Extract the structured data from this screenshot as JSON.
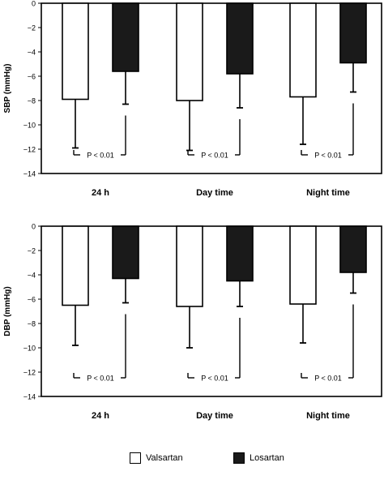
{
  "chart_data": [
    {
      "type": "bar",
      "ylabel": "SBP (mmHg)",
      "categories": [
        "24 h",
        "Day time",
        "Night time"
      ],
      "ylim": [
        -14,
        0
      ],
      "yticks": [
        "0",
        "−2",
        "−4",
        "−6",
        "−8",
        "−10",
        "−12",
        "−14"
      ],
      "series": [
        {
          "name": "Valsartan",
          "values": [
            -7.9,
            -8.0,
            -7.7
          ],
          "errors": [
            4.0,
            4.1,
            3.9
          ],
          "color": "#ffffff"
        },
        {
          "name": "Losartan",
          "values": [
            -5.6,
            -5.8,
            -4.9
          ],
          "errors": [
            2.7,
            2.8,
            2.4
          ],
          "color": "#1a1a1a"
        }
      ],
      "annotations": [
        "P < 0.01",
        "P < 0.01",
        "P < 0.01"
      ]
    },
    {
      "type": "bar",
      "ylabel": "DBP (mmHg)",
      "categories": [
        "24 h",
        "Day time",
        "Night time"
      ],
      "ylim": [
        -14,
        0
      ],
      "yticks": [
        "0",
        "−2",
        "−4",
        "−6",
        "−8",
        "−10",
        "−12",
        "−14"
      ],
      "series": [
        {
          "name": "Valsartan",
          "values": [
            -6.5,
            -6.6,
            -6.4
          ],
          "errors": [
            3.3,
            3.4,
            3.2
          ],
          "color": "#ffffff"
        },
        {
          "name": "Losartan",
          "values": [
            -4.3,
            -4.5,
            -3.8
          ],
          "errors": [
            2.0,
            2.1,
            1.7
          ],
          "color": "#1a1a1a"
        }
      ],
      "annotations": [
        "P < 0.01",
        "P < 0.01",
        "P < 0.01"
      ]
    }
  ],
  "legend": {
    "items": [
      {
        "label": "Valsartan",
        "color": "#ffffff"
      },
      {
        "label": "Losartan",
        "color": "#1a1a1a"
      }
    ]
  }
}
